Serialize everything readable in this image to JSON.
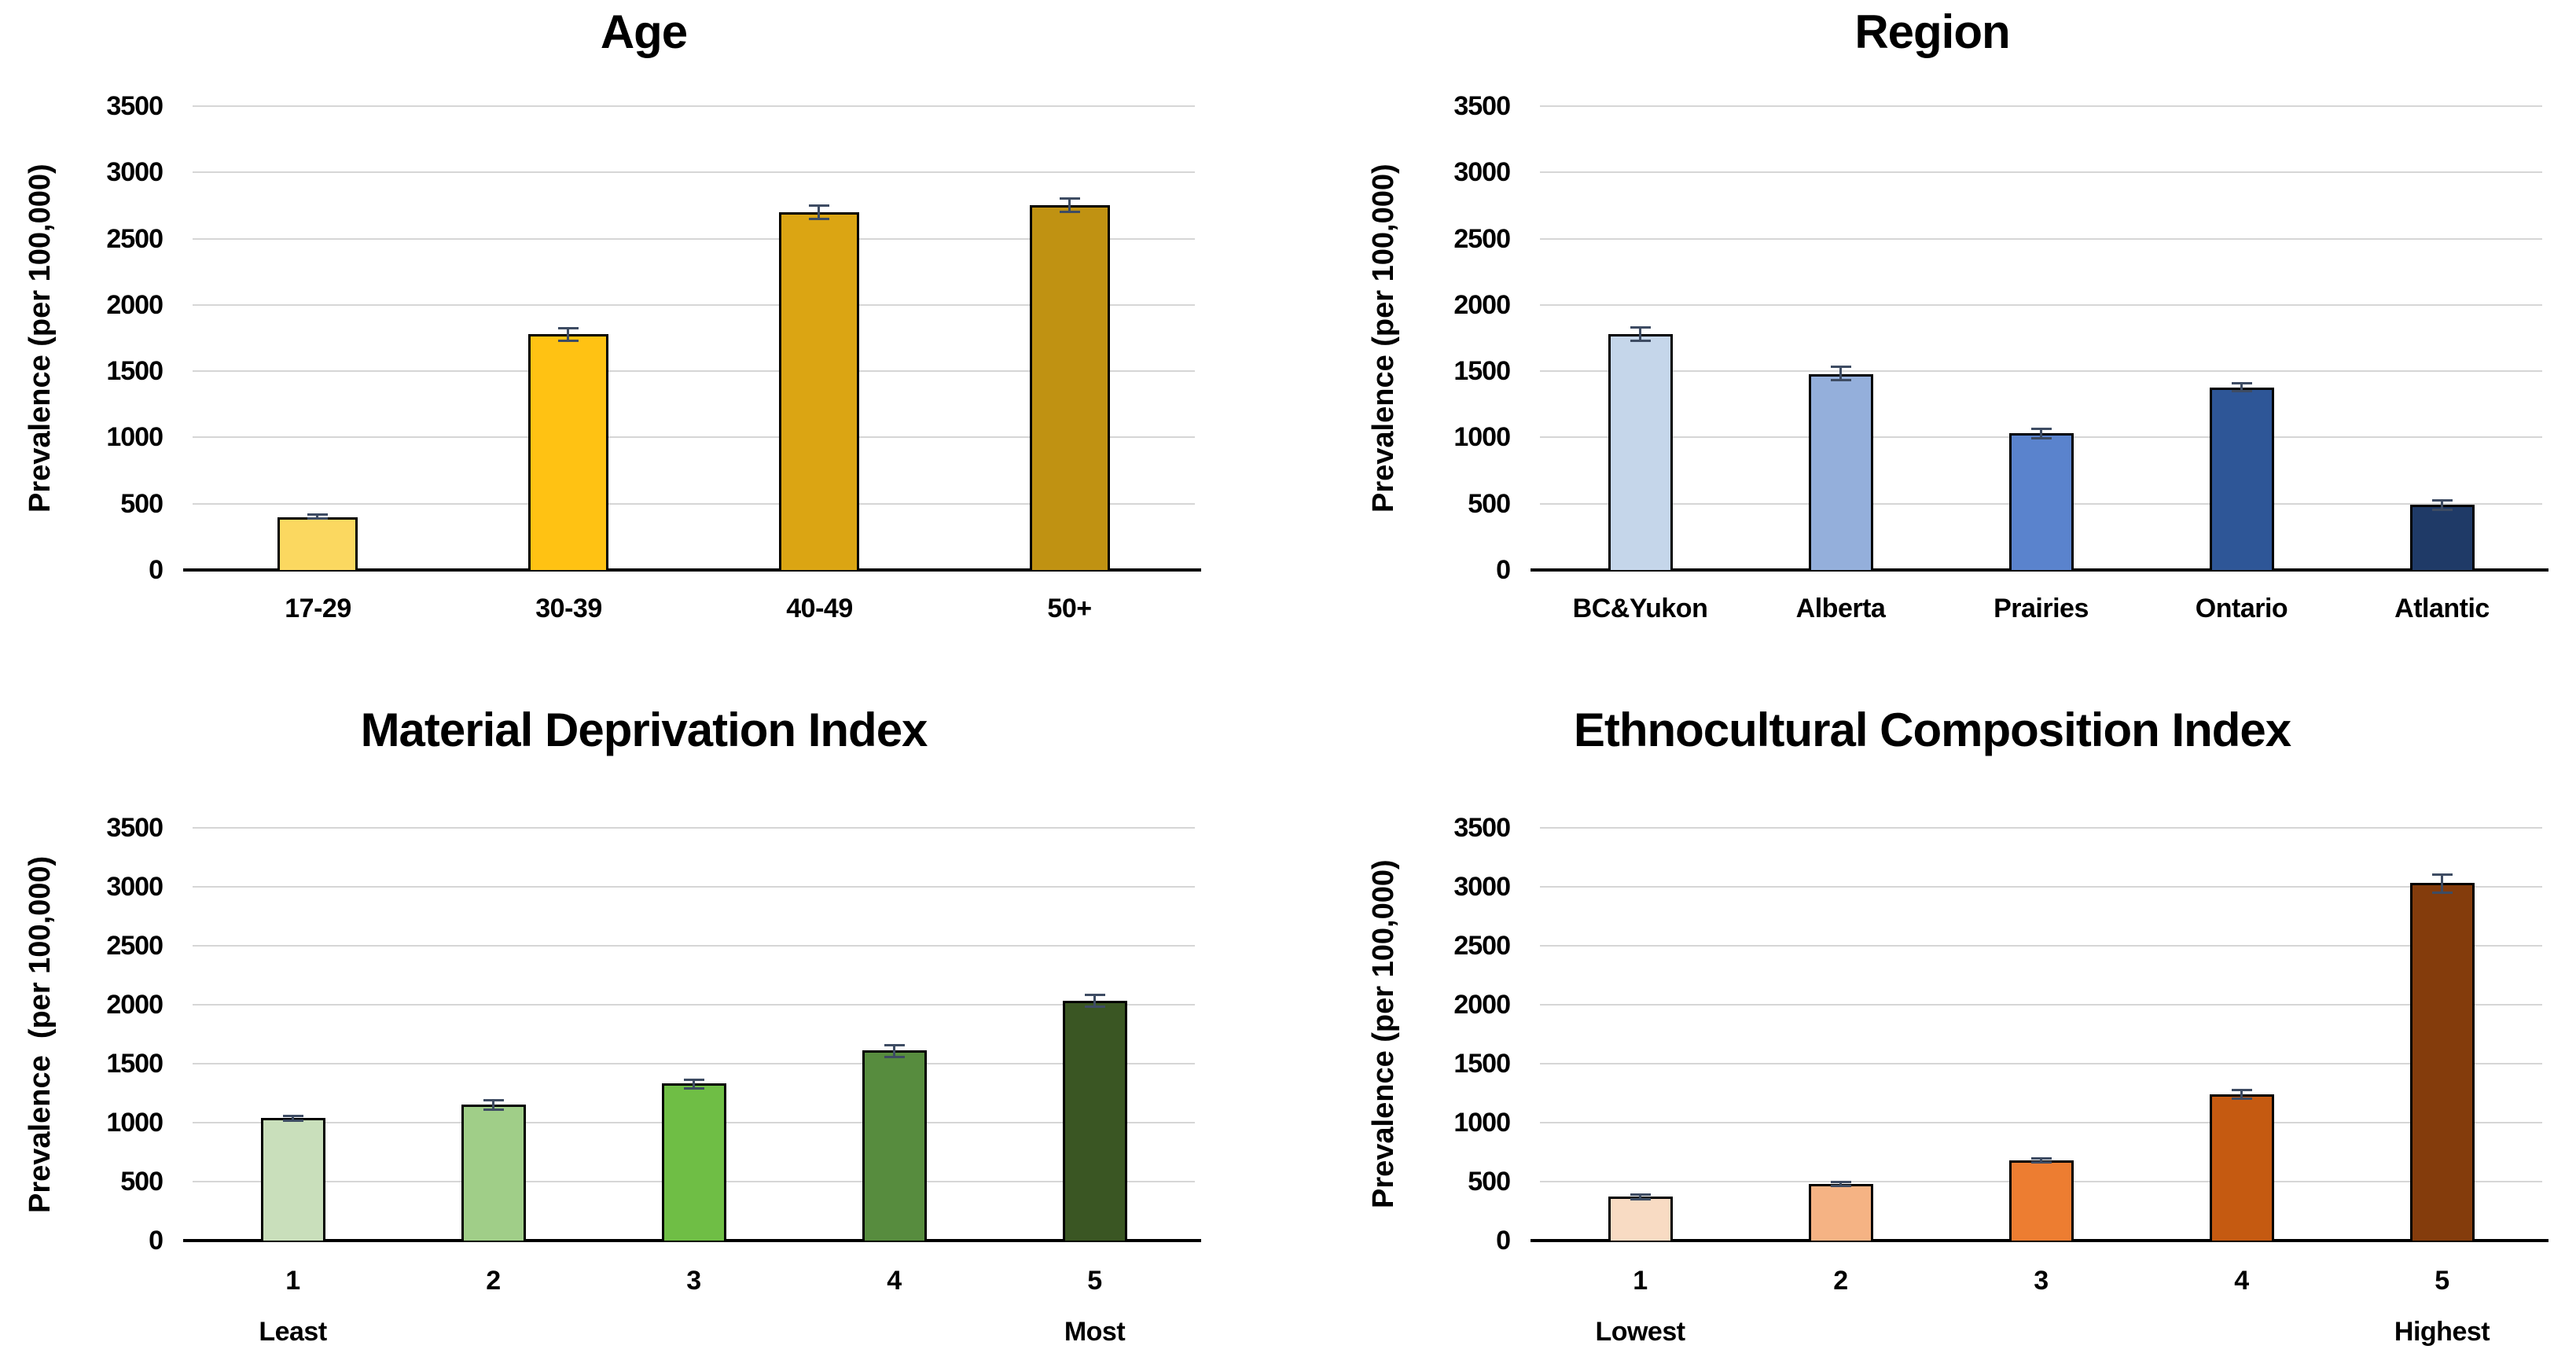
{
  "colors": {
    "background": "#FFFFFF",
    "text": "#000000",
    "gridline": "#D6D6D6",
    "axis_line": "#000000",
    "bar_border": "#000000",
    "error_bar": "#3E4C63"
  },
  "chart_data": [
    {
      "type": "bar",
      "title": "Age",
      "ylabel": "Prevalence (per 100,000)",
      "xlabel": "",
      "categories": [
        "17-29",
        "30-39",
        "40-49",
        "50+"
      ],
      "sublabels": [
        "",
        "",
        "",
        ""
      ],
      "values": [
        400,
        1780,
        2700,
        2750
      ],
      "errors": [
        25,
        55,
        60,
        60
      ],
      "bar_colors": [
        "#FBD860",
        "#FFC213",
        "#DBA513",
        "#C09212"
      ],
      "yticks": [
        3500,
        3000,
        2500,
        2000,
        1500,
        1000,
        500,
        0
      ],
      "ylim": [
        0,
        3500
      ],
      "grid": true,
      "legend": false
    },
    {
      "type": "bar",
      "title": "Region",
      "ylabel": "Prevalence (per 100,000)",
      "xlabel": "",
      "categories": [
        "BC&Yukon",
        "Alberta",
        "Prairies",
        "Ontario",
        "Atlantic"
      ],
      "sublabels": [
        "",
        "",
        "",
        "",
        ""
      ],
      "values": [
        1780,
        1480,
        1030,
        1375,
        490
      ],
      "errors": [
        60,
        60,
        45,
        40,
        45
      ],
      "bar_colors": [
        "#C5D6EA",
        "#94AFDB",
        "#5A83CD",
        "#2E5697",
        "#1F3A67"
      ],
      "yticks": [
        3500,
        3000,
        2500,
        2000,
        1500,
        1000,
        500,
        0
      ],
      "ylim": [
        0,
        3500
      ],
      "grid": true,
      "legend": false
    },
    {
      "type": "bar",
      "title": "Material Deprivation Index",
      "ylabel": "Prevalence  (per 100,000)",
      "xlabel": "",
      "categories": [
        "1",
        "2",
        "3",
        "4",
        "5"
      ],
      "sublabels": [
        "Least",
        "",
        "",
        "",
        "Most"
      ],
      "values": [
        1040,
        1150,
        1330,
        1610,
        2030
      ],
      "errors": [
        30,
        50,
        45,
        60,
        60
      ],
      "bar_colors": [
        "#C9DFBB",
        "#A0CE88",
        "#6FBE45",
        "#578C3E",
        "#3A5623"
      ],
      "yticks": [
        3500,
        3000,
        2500,
        2000,
        1500,
        1000,
        500,
        0
      ],
      "ylim": [
        0,
        3500
      ],
      "grid": true,
      "legend": false
    },
    {
      "type": "bar",
      "title": "Ethnocultural Composition Index",
      "ylabel": "Prevalence (per 100,000)",
      "xlabel": "",
      "categories": [
        "1",
        "2",
        "3",
        "4",
        "5"
      ],
      "sublabels": [
        "Lowest",
        "",
        "",
        "",
        "Highest"
      ],
      "values": [
        370,
        480,
        680,
        1240,
        3030
      ],
      "errors": [
        30,
        25,
        25,
        45,
        85
      ],
      "bar_colors": [
        "#F8DBC3",
        "#F5B384",
        "#ED7D31",
        "#C55A11",
        "#843C0C"
      ],
      "yticks": [
        3500,
        3000,
        2500,
        2000,
        1500,
        1000,
        500,
        0
      ],
      "ylim": [
        0,
        3500
      ],
      "grid": true,
      "legend": false
    }
  ]
}
